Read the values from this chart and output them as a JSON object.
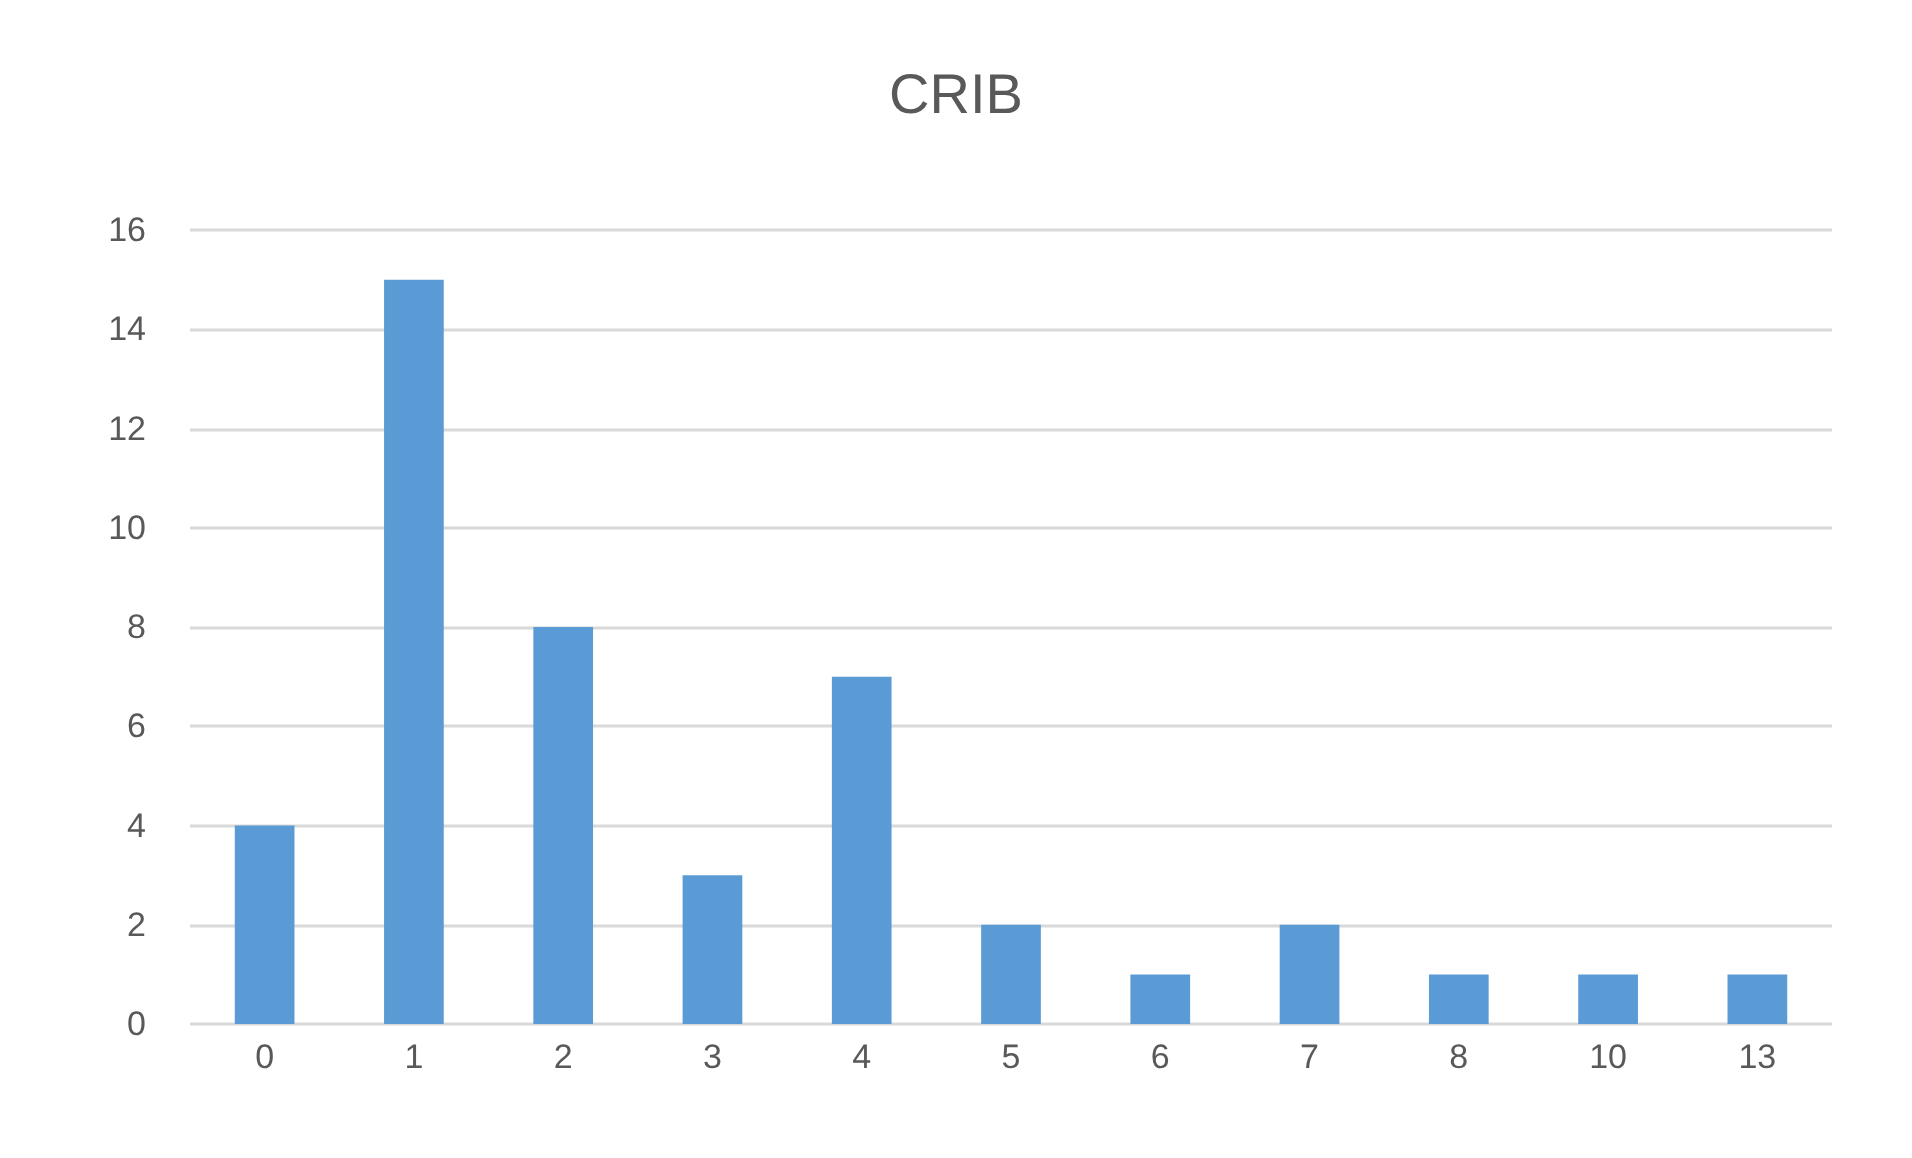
{
  "chart_data": {
    "type": "bar",
    "title": "CRIB",
    "categories": [
      "0",
      "1",
      "2",
      "3",
      "4",
      "5",
      "6",
      "7",
      "8",
      "10",
      "13"
    ],
    "values": [
      4,
      15,
      8,
      3,
      7,
      2,
      1,
      2,
      1,
      1,
      1
    ],
    "color": "#5b9bd5",
    "ylim": [
      0,
      16
    ],
    "yticks": [
      0,
      2,
      4,
      6,
      8,
      10,
      12,
      14,
      16
    ],
    "grid": "y"
  }
}
